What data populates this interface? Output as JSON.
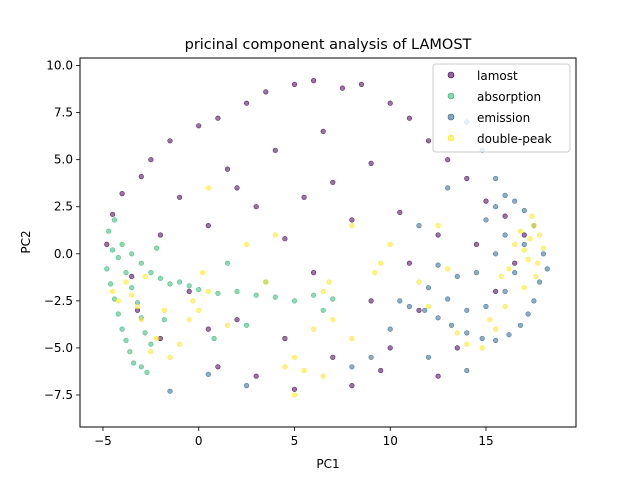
{
  "chart_data": {
    "type": "scatter",
    "title": "pricinal component analysis of LAMOST",
    "xlabel": "PC1",
    "ylabel": "PC2",
    "xlim": [
      -6.2,
      19.7
    ],
    "ylim": [
      -9.2,
      10.4
    ],
    "xticks": [
      -5,
      0,
      5,
      10,
      15
    ],
    "xtick_labels": [
      "−5",
      "0",
      "5",
      "10",
      "15"
    ],
    "yticks": [
      -7.5,
      -5.0,
      -2.5,
      0.0,
      2.5,
      5.0,
      7.5,
      10.0
    ],
    "ytick_labels": [
      "−7.5",
      "−5.0",
      "−2.5",
      "0.0",
      "2.5",
      "5.0",
      "7.5",
      "10.0"
    ],
    "grid": false,
    "legend_position": "top-right",
    "series": [
      {
        "name": "lamost",
        "color": "#440154",
        "description": "dense elliptical cloud covering most of the plane",
        "points": [
          [
            -4.8,
            0.5
          ],
          [
            -4.5,
            2.1
          ],
          [
            -4.0,
            3.2
          ],
          [
            -3.5,
            -1.2
          ],
          [
            -3.0,
            4.1
          ],
          [
            -2.5,
            5.0
          ],
          [
            -2.0,
            1.0
          ],
          [
            -1.5,
            6.0
          ],
          [
            -1.0,
            3.0
          ],
          [
            -0.5,
            -2.0
          ],
          [
            0.0,
            6.8
          ],
          [
            0.5,
            1.5
          ],
          [
            1.0,
            7.2
          ],
          [
            1.5,
            4.5
          ],
          [
            2.0,
            -3.5
          ],
          [
            2.5,
            8.0
          ],
          [
            3.0,
            2.5
          ],
          [
            3.5,
            8.6
          ],
          [
            4.0,
            5.5
          ],
          [
            4.5,
            -4.5
          ],
          [
            5.0,
            9.0
          ],
          [
            5.5,
            3.0
          ],
          [
            6.0,
            9.2
          ],
          [
            6.5,
            6.5
          ],
          [
            7.0,
            -5.5
          ],
          [
            7.5,
            8.8
          ],
          [
            8.0,
            1.8
          ],
          [
            8.5,
            9.0
          ],
          [
            9.0,
            4.8
          ],
          [
            9.5,
            -6.2
          ],
          [
            10.0,
            8.0
          ],
          [
            10.5,
            2.2
          ],
          [
            11.0,
            7.2
          ],
          [
            11.5,
            -3.0
          ],
          [
            12.0,
            6.0
          ],
          [
            12.5,
            1.0
          ],
          [
            13.0,
            5.0
          ],
          [
            13.5,
            -5.0
          ],
          [
            14.0,
            4.0
          ],
          [
            14.5,
            0.5
          ],
          [
            15.0,
            2.8
          ],
          [
            15.5,
            -2.0
          ],
          [
            16.0,
            2.0
          ],
          [
            16.5,
            -0.5
          ],
          [
            17.0,
            1.0
          ],
          [
            12.5,
            -6.5
          ],
          [
            8.0,
            -7.0
          ],
          [
            3.0,
            -6.5
          ],
          [
            0.5,
            -4.0
          ],
          [
            -2.0,
            -4.5
          ],
          [
            6.0,
            -1.0
          ],
          [
            9.0,
            -2.5
          ],
          [
            11.0,
            -0.5
          ],
          [
            4.5,
            0.8
          ],
          [
            2.0,
            3.5
          ],
          [
            7.0,
            3.8
          ],
          [
            -3.2,
            -3.0
          ],
          [
            1.0,
            -6.0
          ],
          [
            5.0,
            -7.2
          ],
          [
            10.0,
            -5.0
          ]
        ]
      },
      {
        "name": "absorption",
        "color": "#35b779",
        "description": "cluster on the left edge plus a band near PC2 ≈ -2",
        "points": [
          [
            -4.8,
            -0.8
          ],
          [
            -4.6,
            -1.6
          ],
          [
            -4.4,
            -2.4
          ],
          [
            -4.2,
            -3.2
          ],
          [
            -4.0,
            -4.0
          ],
          [
            -3.8,
            -4.6
          ],
          [
            -3.6,
            -5.2
          ],
          [
            -3.4,
            -5.8
          ],
          [
            -3.0,
            -6.0
          ],
          [
            -2.7,
            -6.3
          ],
          [
            -4.5,
            0.2
          ],
          [
            -4.2,
            -0.2
          ],
          [
            -3.8,
            -1.0
          ],
          [
            -3.5,
            -1.8
          ],
          [
            -3.2,
            -2.6
          ],
          [
            -3.0,
            -3.4
          ],
          [
            -2.8,
            -4.2
          ],
          [
            -2.5,
            -4.8
          ],
          [
            -4.0,
            0.5
          ],
          [
            -3.5,
            0.0
          ],
          [
            -3.0,
            -0.5
          ],
          [
            -2.5,
            -1.0
          ],
          [
            -2.0,
            -1.3
          ],
          [
            -1.5,
            -1.6
          ],
          [
            -1.0,
            -1.5
          ],
          [
            -0.5,
            -1.7
          ],
          [
            0.0,
            -1.9
          ],
          [
            1.0,
            -2.1
          ],
          [
            2.0,
            -2.0
          ],
          [
            3.0,
            -2.2
          ],
          [
            4.0,
            -2.3
          ],
          [
            5.0,
            -2.5
          ],
          [
            6.0,
            -2.2
          ],
          [
            7.0,
            -2.4
          ],
          [
            1.5,
            -0.5
          ],
          [
            3.5,
            -1.5
          ],
          [
            -1.8,
            -3.5
          ],
          [
            0.8,
            -4.5
          ],
          [
            2.5,
            -3.8
          ],
          [
            6.5,
            -3.0
          ],
          [
            -4.7,
            1.2
          ],
          [
            -4.4,
            1.8
          ],
          [
            -2.2,
            0.3
          ]
        ]
      },
      {
        "name": "emission",
        "color": "#31688e",
        "description": "cluster on the right side around PC1 13–18",
        "points": [
          [
            18.0,
            0.0
          ],
          [
            17.8,
            -1.5
          ],
          [
            17.5,
            -2.5
          ],
          [
            17.2,
            -3.2
          ],
          [
            16.8,
            -3.8
          ],
          [
            16.2,
            -4.3
          ],
          [
            15.5,
            -4.6
          ],
          [
            14.8,
            -4.5
          ],
          [
            14.0,
            -4.2
          ],
          [
            13.2,
            -3.8
          ],
          [
            12.5,
            -3.4
          ],
          [
            11.8,
            -3.0
          ],
          [
            11.0,
            -2.8
          ],
          [
            10.5,
            -2.5
          ],
          [
            17.5,
            1.5
          ],
          [
            17.0,
            2.3
          ],
          [
            16.5,
            2.8
          ],
          [
            16.0,
            3.1
          ],
          [
            15.5,
            2.5
          ],
          [
            15.0,
            1.8
          ],
          [
            16.5,
            -1.0
          ],
          [
            16.0,
            -2.0
          ],
          [
            15.0,
            -2.8
          ],
          [
            14.0,
            -3.0
          ],
          [
            13.0,
            -2.4
          ],
          [
            12.0,
            -1.8
          ],
          [
            15.5,
            0.0
          ],
          [
            14.5,
            -1.0
          ],
          [
            13.5,
            -1.2
          ],
          [
            12.5,
            -0.6
          ],
          [
            17.0,
            0.5
          ],
          [
            16.0,
            1.0
          ],
          [
            15.5,
            4.0
          ],
          [
            14.8,
            5.5
          ],
          [
            14.0,
            7.0
          ],
          [
            13.0,
            3.5
          ],
          [
            11.5,
            1.5
          ],
          [
            10.0,
            -4.0
          ],
          [
            9.0,
            -5.5
          ],
          [
            8.0,
            -6.0
          ],
          [
            12.0,
            -5.5
          ],
          [
            14.0,
            -6.2
          ],
          [
            2.5,
            -7.0
          ],
          [
            -1.5,
            -7.3
          ],
          [
            0.5,
            -6.4
          ],
          [
            18.2,
            -0.8
          ]
        ]
      },
      {
        "name": "double-peak",
        "color": "#fde725",
        "description": "scattered points with a dense cluster on the far right",
        "points": [
          [
            17.8,
            1.0
          ],
          [
            18.0,
            0.3
          ],
          [
            17.7,
            -0.5
          ],
          [
            17.5,
            1.5
          ],
          [
            17.3,
            0.8
          ],
          [
            17.0,
            0.2
          ],
          [
            17.6,
            -1.2
          ],
          [
            17.2,
            -0.3
          ],
          [
            16.8,
            1.2
          ],
          [
            17.4,
            2.0
          ],
          [
            16.5,
            0.5
          ],
          [
            16.2,
            -0.8
          ],
          [
            15.8,
            -1.2
          ],
          [
            -3.8,
            -1.5
          ],
          [
            -3.5,
            -2.2
          ],
          [
            -3.2,
            -2.8
          ],
          [
            -4.2,
            -2.5
          ],
          [
            -4.5,
            -2.0
          ],
          [
            -3.0,
            -3.5
          ],
          [
            -2.8,
            -1.2
          ],
          [
            -2.2,
            -4.5
          ],
          [
            -1.5,
            -5.5
          ],
          [
            -1.0,
            -4.8
          ],
          [
            -0.5,
            -3.5
          ],
          [
            0.0,
            -3.0
          ],
          [
            0.5,
            -2.0
          ],
          [
            0.2,
            -1.0
          ],
          [
            -0.3,
            -2.5
          ],
          [
            6.5,
            -2.0
          ],
          [
            6.8,
            -1.5
          ],
          [
            9.5,
            -0.5
          ],
          [
            9.2,
            -1.0
          ],
          [
            5.0,
            -5.5
          ],
          [
            5.5,
            -6.2
          ],
          [
            6.5,
            -6.5
          ],
          [
            5.0,
            -7.5
          ],
          [
            4.5,
            -6.0
          ],
          [
            7.0,
            -3.5
          ],
          [
            8.0,
            -4.5
          ],
          [
            13.5,
            -4.2
          ],
          [
            14.0,
            -4.8
          ],
          [
            14.8,
            -5.0
          ],
          [
            15.2,
            -3.5
          ],
          [
            12.0,
            -2.8
          ],
          [
            11.5,
            -1.5
          ],
          [
            0.5,
            3.5
          ],
          [
            4.0,
            1.0
          ],
          [
            2.5,
            0.5
          ],
          [
            8.0,
            1.5
          ],
          [
            10.0,
            0.5
          ],
          [
            3.5,
            -1.5
          ],
          [
            1.5,
            -3.8
          ],
          [
            -1.8,
            -3.0
          ],
          [
            -2.5,
            -5.2
          ],
          [
            12.5,
            1.5
          ],
          [
            13.0,
            -0.8
          ],
          [
            6.0,
            -4.0
          ],
          [
            16.0,
            -2.8
          ],
          [
            15.5,
            -4.0
          ],
          [
            17.0,
            -1.8
          ]
        ]
      }
    ]
  }
}
